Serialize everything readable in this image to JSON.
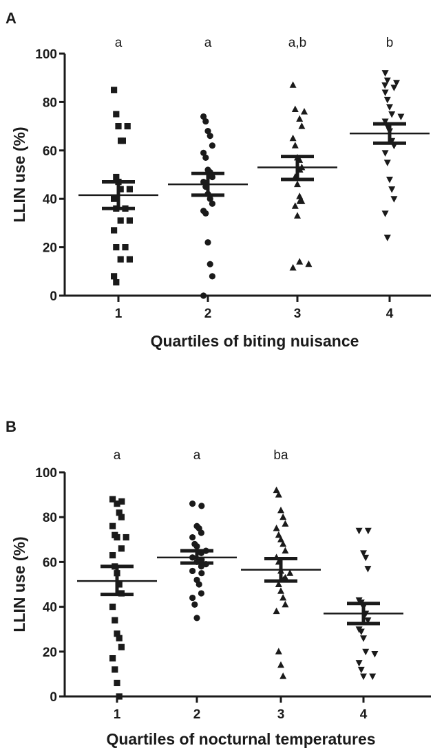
{
  "chart_data": [
    {
      "panel": "A",
      "type": "scatter",
      "xlabel": "Quartiles of biting nuisance",
      "ylabel": "LLIN use (%)",
      "categories": [
        "1",
        "2",
        "3",
        "4"
      ],
      "ylim": [
        0,
        100
      ],
      "yticks": [
        0,
        20,
        40,
        60,
        80,
        100
      ],
      "group_letters": [
        "a",
        "a",
        "a,b",
        "b"
      ],
      "markers": [
        "square",
        "circle",
        "triangle-up",
        "triangle-down"
      ],
      "series": [
        {
          "category": "1",
          "mean": 41.5,
          "sem": [
            36.0,
            47.0
          ],
          "values": [
            85,
            75,
            70,
            70,
            64,
            64,
            49,
            47,
            44,
            44,
            40,
            36,
            36,
            31,
            31,
            27,
            20,
            20,
            15,
            15,
            8,
            5.5
          ]
        },
        {
          "category": "2",
          "mean": 46,
          "sem": [
            41.5,
            50.5
          ],
          "values": [
            74,
            72,
            68,
            66,
            62,
            59,
            57,
            52,
            51,
            49,
            47,
            45,
            42,
            40,
            38,
            35,
            34,
            22,
            13,
            8,
            0
          ]
        },
        {
          "category": "3",
          "mean": 53,
          "sem": [
            48.0,
            57.5
          ],
          "values": [
            87,
            77,
            76,
            73,
            70,
            65,
            62,
            57,
            56,
            53,
            52,
            49,
            46,
            41,
            39,
            39,
            37,
            33,
            14,
            13,
            11.5
          ]
        },
        {
          "category": "4",
          "mean": 67,
          "sem": [
            63.0,
            71.0
          ],
          "values": [
            92,
            89,
            88,
            87,
            86,
            84,
            81,
            78,
            75,
            74,
            72,
            70,
            68,
            64,
            62,
            59,
            55,
            48,
            44,
            40,
            34,
            24
          ]
        }
      ]
    },
    {
      "panel": "B",
      "type": "scatter",
      "xlabel": "Quartiles of nocturnal temperatures",
      "ylabel": "LLIN use (%)",
      "categories": [
        "1",
        "2",
        "3",
        "4"
      ],
      "ylim": [
        0,
        100
      ],
      "yticks": [
        0,
        20,
        40,
        60,
        80,
        100
      ],
      "group_letters": [
        "a",
        "a",
        "ba",
        ""
      ],
      "markers": [
        "square",
        "circle",
        "triangle-up",
        "triangle-down"
      ],
      "series": [
        {
          "category": "1",
          "mean": 51.5,
          "sem": [
            45.5,
            58.0
          ],
          "values": [
            88,
            87,
            86,
            82,
            80,
            76,
            72,
            71,
            71,
            66,
            63,
            58,
            55,
            50,
            46,
            40,
            34,
            28,
            26,
            22,
            17,
            12,
            6,
            0
          ]
        },
        {
          "category": "2",
          "mean": 62,
          "sem": [
            59.5,
            65.0
          ],
          "values": [
            86,
            85,
            76,
            75,
            73,
            71,
            68,
            67,
            65,
            64,
            62,
            61,
            60,
            59,
            58,
            56,
            55,
            52,
            50,
            46,
            44,
            41,
            35
          ]
        },
        {
          "category": "3",
          "mean": 56.5,
          "sem": [
            51.5,
            61.5
          ],
          "values": [
            92,
            90,
            83,
            80,
            77,
            75,
            72,
            70,
            68,
            65,
            62,
            60,
            56,
            55,
            53,
            52,
            50,
            47,
            44,
            41,
            38,
            20,
            14,
            9
          ]
        },
        {
          "category": "4",
          "mean": 37,
          "sem": [
            32.5,
            41.5
          ],
          "values": [
            74,
            74,
            64,
            62,
            57,
            43,
            42,
            40,
            37,
            34,
            30,
            29,
            26,
            20,
            19,
            15,
            12,
            9,
            9
          ]
        }
      ]
    }
  ]
}
